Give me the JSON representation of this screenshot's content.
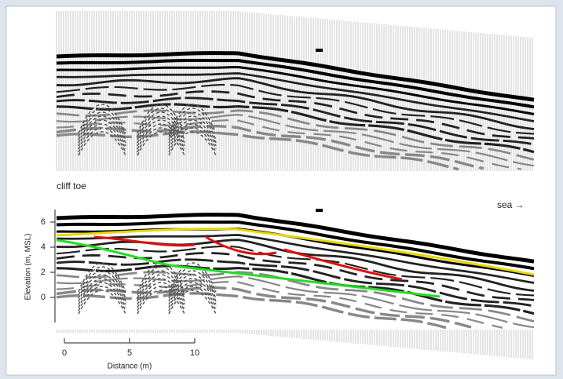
{
  "chart_data": {
    "type": "radargram",
    "annotations": [
      "cliff toe",
      "sea →"
    ],
    "ylabel": "Elevation (m, MSL)",
    "xlabel": "Distance (m)",
    "ylim": [
      -2,
      7
    ],
    "yticks": [
      0,
      2,
      4,
      6
    ],
    "xlim": [
      0,
      10
    ],
    "xticks": [
      0,
      5,
      10
    ]
  }
}
